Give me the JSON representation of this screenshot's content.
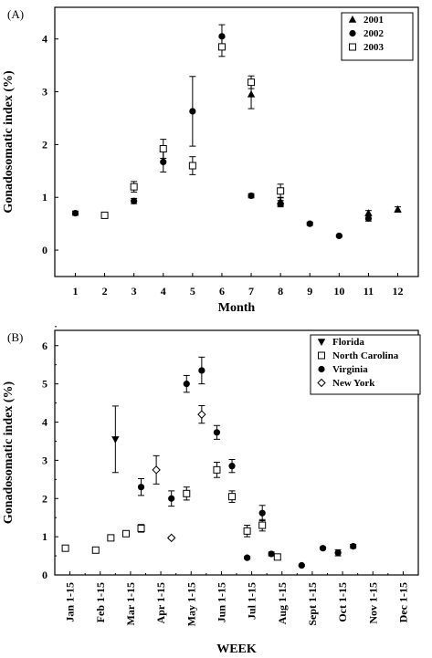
{
  "chart_data": [
    {
      "panel_label": "(A)",
      "type": "scatter",
      "xlabel": "Month",
      "ylabel": "Gonadosomatic index (%)",
      "x_ticks": [
        "1",
        "2",
        "3",
        "4",
        "5",
        "6",
        "7",
        "8",
        "9",
        "10",
        "11",
        "12"
      ],
      "y_ticks": [
        "0",
        "1",
        "2",
        "3",
        "4"
      ],
      "xlim": [
        0.3,
        12.7
      ],
      "ylim": [
        -0.5,
        4.6
      ],
      "legend": "top-right",
      "series": [
        {
          "name": "2001",
          "marker": "triangle-up",
          "points": [
            {
              "x": 7,
              "y": 2.95,
              "lo": 2.68,
              "hi": 3.22
            },
            {
              "x": 8,
              "y": 0.92,
              "lo": 0.84,
              "hi": 1.0
            },
            {
              "x": 11,
              "y": 0.7,
              "lo": 0.65,
              "hi": 0.75
            },
            {
              "x": 12,
              "y": 0.77,
              "lo": 0.72,
              "hi": 0.82
            }
          ]
        },
        {
          "name": "2002",
          "marker": "circle-filled",
          "points": [
            {
              "x": 1,
              "y": 0.7,
              "lo": 0.66,
              "hi": 0.74
            },
            {
              "x": 3,
              "y": 0.93,
              "lo": 0.88,
              "hi": 0.98
            },
            {
              "x": 4,
              "y": 1.67,
              "lo": 1.48,
              "hi": 1.86
            },
            {
              "x": 5,
              "y": 2.63,
              "lo": 1.97,
              "hi": 3.29
            },
            {
              "x": 6,
              "y": 4.05,
              "lo": 3.83,
              "hi": 4.27
            },
            {
              "x": 7,
              "y": 1.03,
              "lo": 0.99,
              "hi": 1.07
            },
            {
              "x": 8,
              "y": 0.88,
              "lo": 0.82,
              "hi": 0.94
            },
            {
              "x": 9,
              "y": 0.5,
              "lo": 0.47,
              "hi": 0.53
            },
            {
              "x": 10,
              "y": 0.27,
              "lo": 0.25,
              "hi": 0.29
            },
            {
              "x": 11,
              "y": 0.6,
              "lo": 0.55,
              "hi": 0.65
            }
          ]
        },
        {
          "name": "2003",
          "marker": "square-open",
          "points": [
            {
              "x": 2,
              "y": 0.66,
              "lo": 0.63,
              "hi": 0.69
            },
            {
              "x": 3,
              "y": 1.2,
              "lo": 1.1,
              "hi": 1.3
            },
            {
              "x": 4,
              "y": 1.92,
              "lo": 1.74,
              "hi": 2.1
            },
            {
              "x": 5,
              "y": 1.6,
              "lo": 1.43,
              "hi": 1.77
            },
            {
              "x": 6,
              "y": 3.85,
              "lo": 3.67,
              "hi": 4.03
            },
            {
              "x": 7,
              "y": 3.18,
              "lo": 3.06,
              "hi": 3.3
            },
            {
              "x": 8,
              "y": 1.12,
              "lo": 0.99,
              "hi": 1.25
            }
          ]
        }
      ]
    },
    {
      "panel_label": "(B)",
      "type": "scatter",
      "xlabel": "WEEK",
      "ylabel": "Gonadosomatic index (%)",
      "x_ticks": [
        "Jan 1-15",
        "Feb 1-15",
        "Mar 1-15",
        "Apr 1-15",
        "May 1-15",
        "Jun 1-15",
        "Jul 1-15",
        "Aug 1-15",
        "Sept 1-15",
        "Oct 1-15",
        "Nov 1-15",
        "Dec 1-15"
      ],
      "y_ticks": [
        "0",
        "1",
        "2",
        "3",
        "4",
        "5",
        "6"
      ],
      "xlim": [
        0,
        24
      ],
      "ylim": [
        0,
        6.4
      ],
      "legend": "top-right",
      "series": [
        {
          "name": "Florida",
          "marker": "triangle-down",
          "points": [
            {
              "x": 4.0,
              "y": 3.55,
              "lo": 2.68,
              "hi": 4.42
            }
          ]
        },
        {
          "name": "North Carolina",
          "marker": "square-open",
          "points": [
            {
              "x": 0.7,
              "y": 0.7,
              "lo": 0.66,
              "hi": 0.74
            },
            {
              "x": 2.7,
              "y": 0.65,
              "lo": 0.61,
              "hi": 0.69
            },
            {
              "x": 3.7,
              "y": 0.97,
              "lo": 0.9,
              "hi": 1.04
            },
            {
              "x": 4.7,
              "y": 1.08,
              "lo": 1.02,
              "hi": 1.14
            },
            {
              "x": 5.7,
              "y": 1.22,
              "lo": 1.12,
              "hi": 1.32
            },
            {
              "x": 8.7,
              "y": 2.13,
              "lo": 1.96,
              "hi": 2.3
            },
            {
              "x": 10.7,
              "y": 2.75,
              "lo": 2.55,
              "hi": 2.95
            },
            {
              "x": 11.7,
              "y": 2.05,
              "lo": 1.9,
              "hi": 2.2
            },
            {
              "x": 12.7,
              "y": 1.15,
              "lo": 1.0,
              "hi": 1.3
            },
            {
              "x": 13.7,
              "y": 1.3,
              "lo": 1.15,
              "hi": 1.45
            },
            {
              "x": 14.7,
              "y": 0.47,
              "lo": 0.42,
              "hi": 0.52
            }
          ]
        },
        {
          "name": "Virginia",
          "marker": "circle-filled",
          "points": [
            {
              "x": 5.7,
              "y": 2.3,
              "lo": 2.08,
              "hi": 2.52
            },
            {
              "x": 7.7,
              "y": 2.0,
              "lo": 1.8,
              "hi": 2.2
            },
            {
              "x": 8.7,
              "y": 5.0,
              "lo": 4.78,
              "hi": 5.22
            },
            {
              "x": 9.7,
              "y": 5.35,
              "lo": 5.0,
              "hi": 5.7
            },
            {
              "x": 10.7,
              "y": 3.73,
              "lo": 3.55,
              "hi": 3.91
            },
            {
              "x": 11.7,
              "y": 2.85,
              "lo": 2.68,
              "hi": 3.02
            },
            {
              "x": 12.7,
              "y": 0.45,
              "lo": 0.42,
              "hi": 0.48
            },
            {
              "x": 13.7,
              "y": 1.62,
              "lo": 1.42,
              "hi": 1.82
            },
            {
              "x": 14.3,
              "y": 0.55,
              "lo": 0.5,
              "hi": 0.6
            },
            {
              "x": 16.3,
              "y": 0.25,
              "lo": 0.23,
              "hi": 0.27
            },
            {
              "x": 17.7,
              "y": 0.7,
              "lo": 0.67,
              "hi": 0.73
            },
            {
              "x": 18.7,
              "y": 0.58,
              "lo": 0.5,
              "hi": 0.66
            },
            {
              "x": 19.7,
              "y": 0.75,
              "lo": 0.7,
              "hi": 0.8
            }
          ]
        },
        {
          "name": "New York",
          "marker": "diamond-open",
          "points": [
            {
              "x": 6.7,
              "y": 2.75,
              "lo": 2.38,
              "hi": 3.12
            },
            {
              "x": 7.7,
              "y": 0.97,
              "lo": 0.94,
              "hi": 1.0
            },
            {
              "x": 9.7,
              "y": 4.2,
              "lo": 3.97,
              "hi": 4.43
            }
          ]
        }
      ]
    }
  ]
}
